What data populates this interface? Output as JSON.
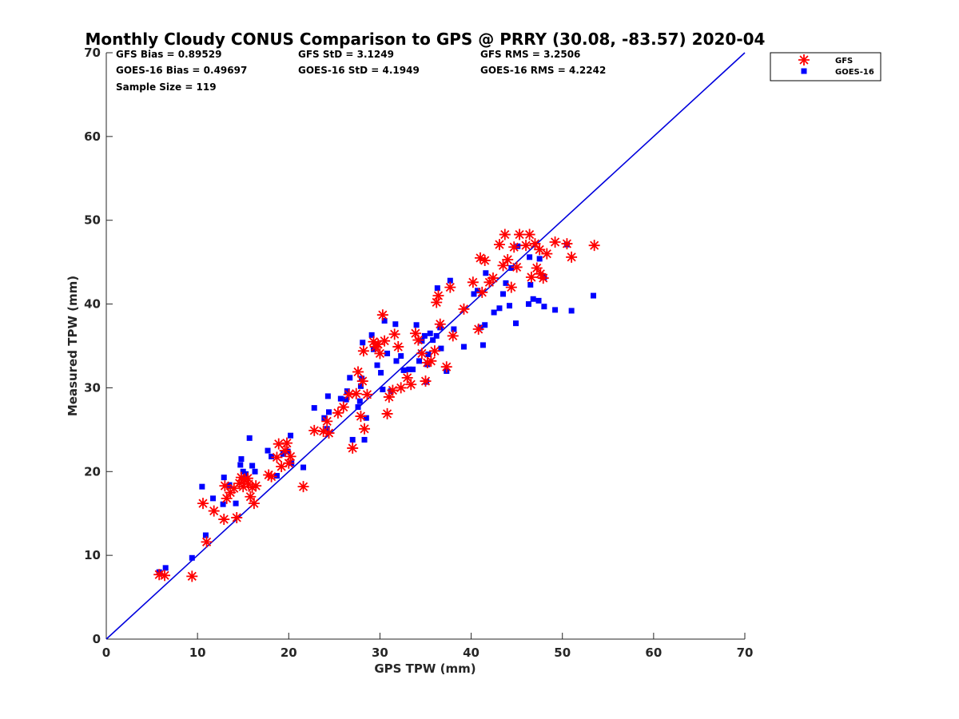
{
  "chart_data": {
    "type": "scatter",
    "title": "Monthly Cloudy CONUS Comparison to GPS @ PRRY (30.08, -83.57) 2020-04",
    "xlabel": "GPS TPW (mm)",
    "ylabel": "Measured TPW (mm)",
    "xlim": [
      0,
      70
    ],
    "ylim": [
      0,
      70
    ],
    "xticks": [
      "0",
      "10",
      "20",
      "30",
      "40",
      "50",
      "60",
      "70"
    ],
    "yticks": [
      "0",
      "10",
      "20",
      "30",
      "40",
      "50",
      "60",
      "70"
    ],
    "grid": false,
    "legend_position": "top-right outside",
    "stats": [
      "GFS Bias = 0.89529",
      "GFS StD = 3.1249",
      "GFS RMS = 3.2506",
      "GOES-16 Bias = 0.49697",
      "GOES-16 StD = 4.1949",
      "GOES-16 RMS = 4.2242",
      "Sample Size = 119"
    ],
    "reference_line": {
      "name": "1:1",
      "points": [
        [
          0,
          0
        ],
        [
          70,
          70
        ]
      ],
      "color": "#0000dd"
    },
    "series": [
      {
        "name": "GFS",
        "marker": "asterisk",
        "color": "#ff0000",
        "points": [
          [
            5.8,
            7.7
          ],
          [
            6.4,
            7.6
          ],
          [
            9.4,
            7.5
          ],
          [
            10.6,
            16.2
          ],
          [
            11,
            11.6
          ],
          [
            11.8,
            15.3
          ],
          [
            12.9,
            14.3
          ],
          [
            13,
            18.3
          ],
          [
            13.2,
            16.8
          ],
          [
            13.6,
            17.5
          ],
          [
            14,
            18
          ],
          [
            14.3,
            14.5
          ],
          [
            14.6,
            18.6
          ],
          [
            14.8,
            19.3
          ],
          [
            15,
            18.2
          ],
          [
            15.2,
            19
          ],
          [
            15.5,
            19.2
          ],
          [
            15.6,
            18.5
          ],
          [
            15.8,
            17
          ],
          [
            16,
            18.1
          ],
          [
            16.2,
            16.2
          ],
          [
            16.4,
            18.3
          ],
          [
            17.8,
            19.6
          ],
          [
            18.1,
            19.4
          ],
          [
            18.7,
            21.7
          ],
          [
            18.9,
            23.3
          ],
          [
            19.2,
            20.6
          ],
          [
            19.6,
            22.5
          ],
          [
            19.8,
            23.4
          ],
          [
            20,
            21
          ],
          [
            20.2,
            21.8
          ],
          [
            21.6,
            18.2
          ],
          [
            22.8,
            24.9
          ],
          [
            23.8,
            24.8
          ],
          [
            24.2,
            26
          ],
          [
            24.4,
            24.6
          ],
          [
            25.4,
            27
          ],
          [
            26,
            27.7
          ],
          [
            26.6,
            29.2
          ],
          [
            27,
            22.8
          ],
          [
            27.4,
            29.3
          ],
          [
            27.6,
            31.9
          ],
          [
            27.9,
            26.6
          ],
          [
            28.1,
            30.8
          ],
          [
            28.2,
            34.4
          ],
          [
            28.3,
            25.1
          ],
          [
            28.6,
            29.2
          ],
          [
            29.3,
            35.5
          ],
          [
            29.5,
            34.9
          ],
          [
            29.8,
            35.2
          ],
          [
            30,
            34.1
          ],
          [
            30.3,
            38.7
          ],
          [
            30.5,
            35.6
          ],
          [
            30.8,
            26.9
          ],
          [
            31,
            28.9
          ],
          [
            31.4,
            29.7
          ],
          [
            31.6,
            36.4
          ],
          [
            32,
            34.9
          ],
          [
            32.3,
            30
          ],
          [
            33,
            31.2
          ],
          [
            33.4,
            30.4
          ],
          [
            33.9,
            36.5
          ],
          [
            34.2,
            35.7
          ],
          [
            34.6,
            34.1
          ],
          [
            35,
            30.8
          ],
          [
            35.2,
            33
          ],
          [
            35.6,
            33.2
          ],
          [
            36,
            34.4
          ],
          [
            36.2,
            40.2
          ],
          [
            36.4,
            41
          ],
          [
            36.6,
            37.6
          ],
          [
            37.3,
            32.5
          ],
          [
            37.7,
            42
          ],
          [
            38,
            36.2
          ],
          [
            39.2,
            39.4
          ],
          [
            40.2,
            42.6
          ],
          [
            40.8,
            37
          ],
          [
            41,
            45.5
          ],
          [
            41.2,
            41.4
          ],
          [
            41.5,
            45.2
          ],
          [
            42,
            42.6
          ],
          [
            42.4,
            43.1
          ],
          [
            43.1,
            47.1
          ],
          [
            43.5,
            44.6
          ],
          [
            43.7,
            48.3
          ],
          [
            44,
            45.3
          ],
          [
            44.4,
            42
          ],
          [
            44.7,
            46.8
          ],
          [
            45,
            44.4
          ],
          [
            45.3,
            48.3
          ],
          [
            46,
            47
          ],
          [
            46.4,
            48.3
          ],
          [
            46.6,
            43.2
          ],
          [
            47,
            47.2
          ],
          [
            47.2,
            44.3
          ],
          [
            47.5,
            46.5
          ],
          [
            47.6,
            43.6
          ],
          [
            47.9,
            43.1
          ],
          [
            48.3,
            46
          ],
          [
            49.2,
            47.4
          ],
          [
            50.5,
            47.2
          ],
          [
            51,
            45.6
          ],
          [
            53.5,
            47
          ]
        ]
      },
      {
        "name": "GOES-16",
        "marker": "square",
        "color": "#0000ff",
        "points": [
          [
            5.8,
            8
          ],
          [
            6.5,
            8.5
          ],
          [
            9.4,
            9.7
          ],
          [
            10.5,
            18.2
          ],
          [
            10.9,
            12.4
          ],
          [
            11.7,
            16.8
          ],
          [
            12.8,
            16.1
          ],
          [
            12.9,
            19.3
          ],
          [
            13.5,
            18.4
          ],
          [
            14.2,
            16.2
          ],
          [
            14.7,
            20.8
          ],
          [
            14.8,
            21.5
          ],
          [
            15,
            20
          ],
          [
            15.3,
            19.7
          ],
          [
            15.7,
            24
          ],
          [
            16,
            20.7
          ],
          [
            16.3,
            20
          ],
          [
            17.7,
            22.5
          ],
          [
            18.1,
            21.8
          ],
          [
            18.7,
            19.5
          ],
          [
            19.4,
            22.1
          ],
          [
            19.9,
            22.4
          ],
          [
            20.2,
            24.3
          ],
          [
            20.3,
            21
          ],
          [
            21.6,
            20.5
          ],
          [
            22.8,
            27.6
          ],
          [
            23.9,
            26.4
          ],
          [
            24.2,
            25.1
          ],
          [
            24.3,
            29
          ],
          [
            24.4,
            27.1
          ],
          [
            25.7,
            28.7
          ],
          [
            26.3,
            28.6
          ],
          [
            26.4,
            29.6
          ],
          [
            26.7,
            31.2
          ],
          [
            27,
            23.8
          ],
          [
            27.6,
            27.7
          ],
          [
            27.8,
            28.4
          ],
          [
            27.9,
            30.2
          ],
          [
            28,
            31.1
          ],
          [
            28.1,
            35.4
          ],
          [
            28.3,
            23.8
          ],
          [
            28.5,
            26.4
          ],
          [
            29.1,
            36.3
          ],
          [
            29.3,
            34.6
          ],
          [
            29.7,
            32.7
          ],
          [
            30.1,
            31.8
          ],
          [
            30.3,
            29.8
          ],
          [
            30.5,
            38
          ],
          [
            30.8,
            34.1
          ],
          [
            31.2,
            29.6
          ],
          [
            31.7,
            37.6
          ],
          [
            31.8,
            33.2
          ],
          [
            32.3,
            33.8
          ],
          [
            32.6,
            32.1
          ],
          [
            33.2,
            32.2
          ],
          [
            33.6,
            32.2
          ],
          [
            34,
            37.5
          ],
          [
            34.3,
            33.2
          ],
          [
            34.6,
            35.6
          ],
          [
            34.9,
            36.2
          ],
          [
            35.1,
            30.7
          ],
          [
            35.2,
            32.8
          ],
          [
            35.3,
            34
          ],
          [
            35.5,
            36.5
          ],
          [
            35.8,
            35.7
          ],
          [
            36.2,
            36.2
          ],
          [
            36.3,
            41.9
          ],
          [
            36.6,
            37.2
          ],
          [
            36.7,
            34.7
          ],
          [
            37.3,
            32
          ],
          [
            37.7,
            42.8
          ],
          [
            38.1,
            37
          ],
          [
            39.2,
            34.9
          ],
          [
            40.3,
            41.2
          ],
          [
            40.7,
            41.6
          ],
          [
            41,
            37.2
          ],
          [
            41.3,
            35.1
          ],
          [
            41.5,
            37.5
          ],
          [
            41.6,
            43.7
          ],
          [
            42.5,
            39
          ],
          [
            43.1,
            39.5
          ],
          [
            43.5,
            41.2
          ],
          [
            43.8,
            42.5
          ],
          [
            44.2,
            39.8
          ],
          [
            44.4,
            44.3
          ],
          [
            44.9,
            37.7
          ],
          [
            45.1,
            46.9
          ],
          [
            46.3,
            40
          ],
          [
            46.4,
            45.6
          ],
          [
            46.5,
            42.3
          ],
          [
            46.8,
            40.6
          ],
          [
            47.4,
            40.4
          ],
          [
            47.5,
            45.4
          ],
          [
            48,
            39.7
          ],
          [
            48,
            43.2
          ],
          [
            49.2,
            39.3
          ],
          [
            50.5,
            47.1
          ],
          [
            51,
            39.2
          ],
          [
            53.4,
            41
          ]
        ]
      }
    ]
  }
}
